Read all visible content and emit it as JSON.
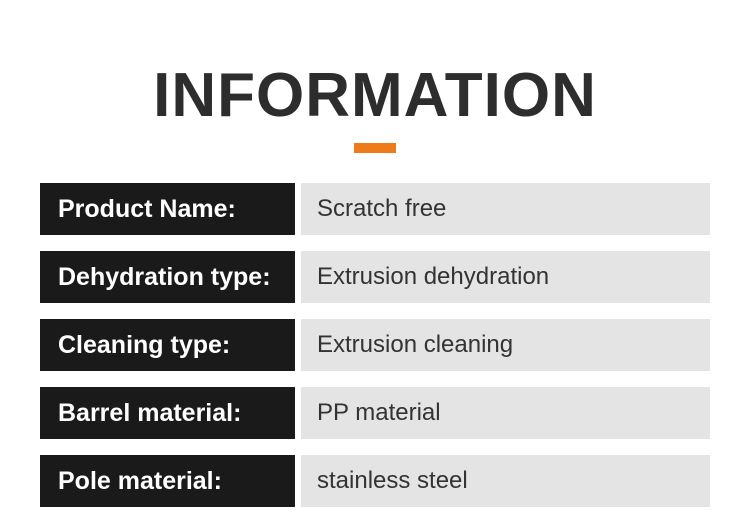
{
  "title": "INFORMATION",
  "accent_color": "#ee7a1a",
  "title_color": "#2d2d2d",
  "label_bg": "#1a1a1a",
  "label_fg": "#ffffff",
  "value_bg": "#e4e4e4",
  "value_fg": "#333333",
  "rows": [
    {
      "label": "Product Name:",
      "value": "Scratch free"
    },
    {
      "label": "Dehydration type:",
      "value": "Extrusion dehydration"
    },
    {
      "label": "Cleaning type:",
      "value": "Extrusion cleaning"
    },
    {
      "label": "Barrel material:",
      "value": "PP material"
    },
    {
      "label": "Pole material:",
      "value": "stainless steel"
    }
  ]
}
